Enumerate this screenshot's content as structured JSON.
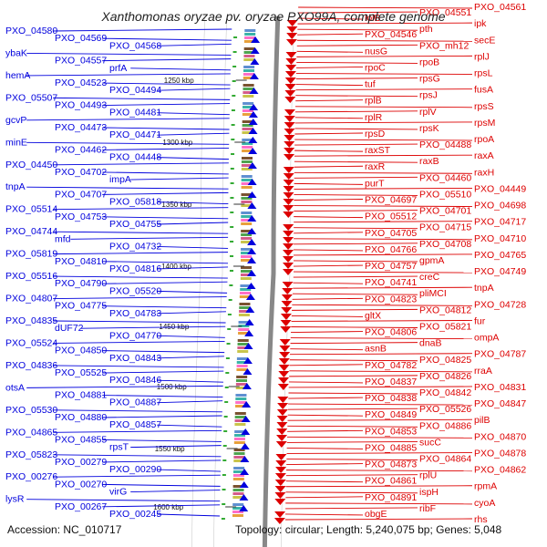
{
  "title": "Xanthomonas oryzae pv. oryzae PXO99A, complete genome",
  "footer": {
    "accession": "Accession: NC_010717",
    "summary": "Topology: circular; Length: 5,240,075 bp; Genes: 5,048"
  },
  "colors": {
    "forward": "#0000dd",
    "reverse": "#dd0000",
    "backbone": "#888888"
  },
  "scale_ticks": [
    "1250 kbp",
    "1300 kbp",
    "1350 kbp",
    "1400 kbp",
    "1450 kbp",
    "1500 kbp",
    "1550 kbp",
    "1600 kbp"
  ],
  "left_labels": [
    "PXO_04580",
    "PXO_04569",
    "PXO_04568",
    "ybaK",
    "PXO_04557",
    "prfA",
    "hemA",
    "PXO_04523",
    "PXO_04494",
    "PXO_05507",
    "PXO_04493",
    "PXO_04481",
    "gcvP",
    "PXO_04473",
    "PXO_04471",
    "minE",
    "PXO_04462",
    "PXO_04448",
    "PXO_04450",
    "PXO_04702",
    "impA",
    "tnpA",
    "PXO_04707",
    "PXO_05818",
    "PXO_05514",
    "PXO_04753",
    "PXO_04755",
    "PXO_04744",
    "mfd",
    "PXO_04732",
    "PXO_05819",
    "PXO_04810",
    "PXO_04816",
    "PXO_05516",
    "PXO_04790",
    "PXO_05520",
    "PXO_04807",
    "PXO_04775",
    "PXO_04783",
    "PXO_04835",
    "dUF72",
    "PXO_04770",
    "PXO_05524",
    "PXO_04850",
    "PXO_04843",
    "PXO_04836",
    "PXO_05525",
    "PXO_04846",
    "otsA",
    "PXO_04881",
    "PXO_04887",
    "PXO_05530",
    "PXO_04880",
    "PXO_04857",
    "PXO_04865",
    "PXO_04855",
    "rpsT",
    "PXO_05823",
    "PXO_00279",
    "PXO_00290",
    "PXO_00276",
    "PXO_00270",
    "virG",
    "lysR",
    "PXO_00267",
    "PXO_00245"
  ],
  "right_labels": [
    "PXO_04561",
    "PXO_04551",
    "lolB",
    "ipk",
    "pth",
    "PXO_04546",
    "secE",
    "PXO_mh12",
    "nusG",
    "rplJ",
    "rpoB",
    "rpoC",
    "rpsL",
    "rpsG",
    "tuf",
    "fusA",
    "rpsJ",
    "rplB",
    "rpsS",
    "rplV",
    "rplR",
    "rpsM",
    "rpsK",
    "rpsD",
    "rpoA",
    "PXO_04488",
    "raxST",
    "raxA",
    "raxB",
    "raxR",
    "raxH",
    "PXO_04460",
    "purT",
    "PXO_04449",
    "PXO_05510",
    "PXO_04697",
    "PXO_04698",
    "PXO_04701",
    "PXO_05512",
    "PXO_04717",
    "PXO_04715",
    "PXO_04705",
    "PXO_04710",
    "PXO_04708",
    "PXO_04766",
    "PXO_04765",
    "gpmA",
    "PXO_04757",
    "PXO_04749",
    "creC",
    "PXO_04741",
    "tnpA",
    "pliMCI",
    "PXO_04823",
    "PXO_04728",
    "PXO_04812",
    "gltX",
    "fur",
    "PXO_05821",
    "PXO_04806",
    "ompA",
    "dnaB",
    "asnB",
    "PXO_04787",
    "PXO_04825",
    "PXO_04782",
    "rraA",
    "PXO_04826",
    "PXO_04837",
    "PXO_04831",
    "PXO_04842",
    "PXO_04838",
    "PXO_04847",
    "PXO_05526",
    "PXO_04849",
    "pilB",
    "PXO_04886",
    "PXO_04853",
    "PXO_04870",
    "sucC",
    "PXO_04885",
    "PXO_04878",
    "PXO_04864",
    "PXO_04873",
    "PXO_04862",
    "rplU",
    "PXO_04861",
    "rpmA",
    "ispH",
    "PXO_04891",
    "cyoA",
    "ribF",
    "obgE",
    "rhs"
  ]
}
